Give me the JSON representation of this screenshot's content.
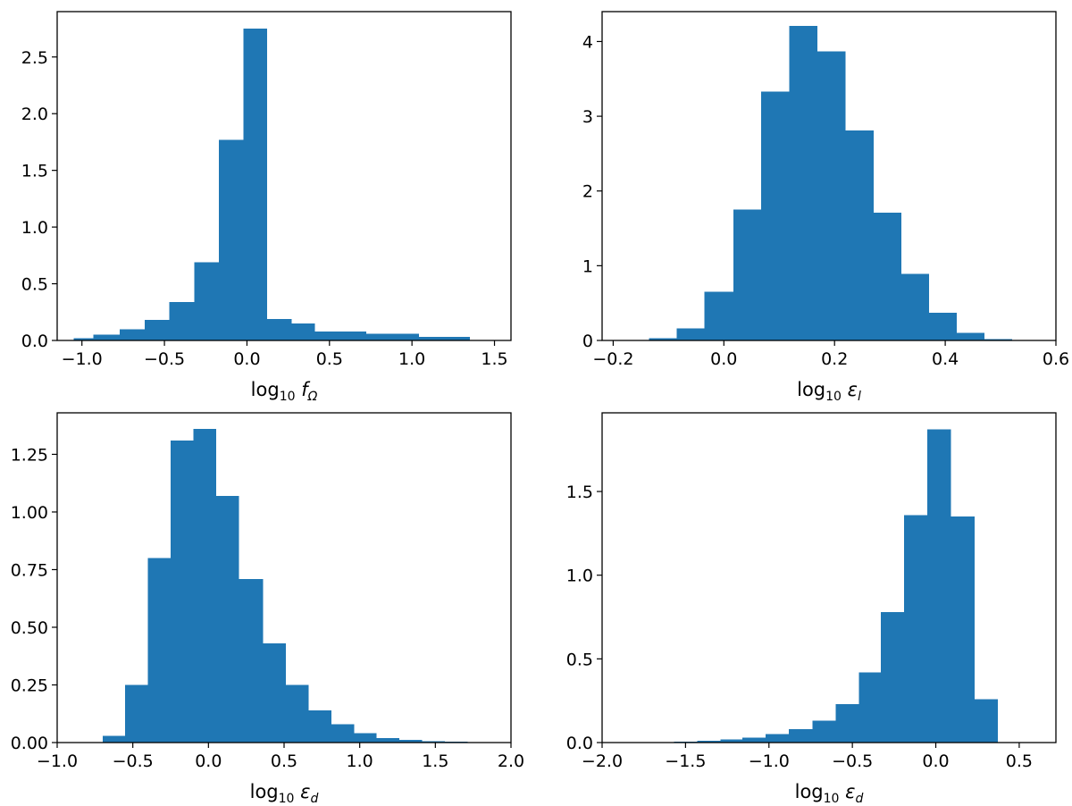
{
  "colors": {
    "bar": "#1f77b4",
    "frame": "#000000",
    "background": "#ffffff"
  },
  "chart_data": [
    {
      "type": "bar",
      "panel": "top-left",
      "xlabel": {
        "prefix": "log",
        "sub": "10",
        "symbol": "f",
        "symbol_sub": "Ω"
      },
      "xlim": [
        -1.15,
        1.6
      ],
      "ylim": [
        0,
        2.9
      ],
      "xticks": [
        -1.0,
        -0.5,
        0.0,
        0.5,
        1.0,
        1.5
      ],
      "xtick_labels": [
        "−1.0",
        "−0.5",
        "0.0",
        "0.5",
        "1.0",
        "1.5"
      ],
      "yticks": [
        0.0,
        0.5,
        1.0,
        1.5,
        2.0,
        2.5
      ],
      "ytick_labels": [
        "0.0",
        "0.5",
        "1.0",
        "1.5",
        "2.0",
        "2.5"
      ],
      "bin_edges": [
        -1.05,
        -0.93,
        -0.77,
        -0.62,
        -0.47,
        -0.32,
        -0.17,
        -0.02,
        0.12,
        0.27,
        0.41,
        0.57,
        0.72,
        0.88,
        1.04,
        1.19,
        1.35
      ],
      "values": [
        0.02,
        0.05,
        0.1,
        0.18,
        0.34,
        0.69,
        1.77,
        2.75,
        0.19,
        0.15,
        0.08,
        0.08,
        0.06,
        0.06,
        0.03,
        0.03
      ]
    },
    {
      "type": "bar",
      "panel": "top-right",
      "xlabel": {
        "prefix": "log",
        "sub": "10",
        "symbol": "ε",
        "symbol_sub": "l"
      },
      "xlim": [
        -0.22,
        0.6
      ],
      "ylim": [
        0,
        4.4
      ],
      "xticks": [
        -0.2,
        0.0,
        0.2,
        0.4,
        0.6
      ],
      "xtick_labels": [
        "−0.2",
        "0.0",
        "0.2",
        "0.4",
        "0.6"
      ],
      "yticks": [
        0,
        1,
        2,
        3,
        4
      ],
      "ytick_labels": [
        "0",
        "1",
        "2",
        "3",
        "4"
      ],
      "bin_edges": [
        -0.185,
        -0.135,
        -0.085,
        -0.035,
        0.017,
        0.067,
        0.118,
        0.168,
        0.219,
        0.27,
        0.32,
        0.37,
        0.42,
        0.47,
        0.52
      ],
      "values": [
        0.004,
        0.03,
        0.16,
        0.65,
        1.75,
        3.33,
        4.21,
        3.87,
        2.81,
        1.71,
        0.89,
        0.37,
        0.1,
        0.015
      ]
    },
    {
      "type": "bar",
      "panel": "bottom-left",
      "xlabel": {
        "prefix": "log",
        "sub": "10",
        "symbol": "ε",
        "symbol_sub": "d"
      },
      "xlim": [
        -1.0,
        2.0
      ],
      "ylim": [
        0,
        1.43
      ],
      "xticks": [
        -1.0,
        -0.5,
        0.0,
        0.5,
        1.0,
        1.5,
        2.0
      ],
      "xtick_labels": [
        "−1.0",
        "−0.5",
        "0.0",
        "0.5",
        "1.0",
        "1.5",
        "2.0"
      ],
      "yticks": [
        0.0,
        0.25,
        0.5,
        0.75,
        1.0,
        1.25
      ],
      "ytick_labels": [
        "0.00",
        "0.25",
        "0.50",
        "0.75",
        "1.00",
        "1.25"
      ],
      "bin_edges": [
        -0.7,
        -0.55,
        -0.4,
        -0.25,
        -0.1,
        0.05,
        0.2,
        0.36,
        0.51,
        0.66,
        0.81,
        0.96,
        1.11,
        1.26,
        1.41,
        1.56,
        1.71,
        1.86
      ],
      "values": [
        0.03,
        0.25,
        0.8,
        1.31,
        1.36,
        1.07,
        0.71,
        0.43,
        0.25,
        0.14,
        0.08,
        0.04,
        0.02,
        0.012,
        0.006,
        0.003,
        0.001
      ]
    },
    {
      "type": "bar",
      "panel": "bottom-right",
      "xlabel": {
        "prefix": "log",
        "sub": "10",
        "symbol": "ε",
        "symbol_sub": "d"
      },
      "xlim": [
        -2.0,
        0.72
      ],
      "ylim": [
        0,
        1.97
      ],
      "xticks": [
        -2.0,
        -1.5,
        -1.0,
        -0.5,
        0.0,
        0.5
      ],
      "xtick_labels": [
        "−2.0",
        "−1.5",
        "−1.0",
        "−0.5",
        "0.0",
        "0.5"
      ],
      "yticks": [
        0.0,
        0.5,
        1.0,
        1.5
      ],
      "ytick_labels": [
        "0.0",
        "0.5",
        "1.0",
        "1.5"
      ],
      "bin_edges": [
        -1.85,
        -1.71,
        -1.57,
        -1.43,
        -1.29,
        -1.16,
        -1.02,
        -0.88,
        -0.74,
        -0.6,
        -0.46,
        -0.33,
        -0.19,
        -0.05,
        0.09,
        0.23,
        0.37
      ],
      "values": [
        0.002,
        0.003,
        0.005,
        0.012,
        0.02,
        0.03,
        0.05,
        0.08,
        0.13,
        0.23,
        0.42,
        0.78,
        1.36,
        1.87,
        1.35,
        0.26
      ]
    }
  ]
}
